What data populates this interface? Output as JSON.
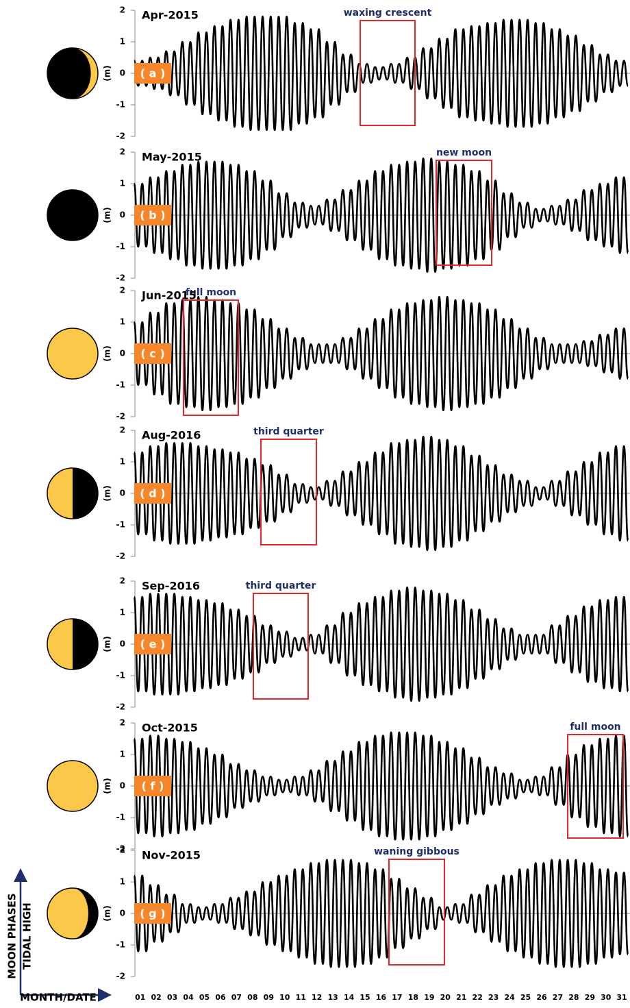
{
  "chart_data": [
    {
      "type": "line",
      "title": "Apr-2015",
      "annotation": "waxing crescent",
      "panel_label": "( a )",
      "ylabel": "(m)",
      "ylim": [
        -2,
        2
      ],
      "yticks": [
        -2,
        -1,
        0,
        1,
        2
      ],
      "color": "#000000",
      "values": [
        0.4,
        -0.4,
        0.4,
        -0.4,
        0.5,
        -0.5,
        0.5,
        -0.5,
        0.7,
        -0.7,
        0.7,
        -0.7,
        1,
        -1,
        1,
        -1,
        1.3,
        -1.3,
        1.3,
        -1.3,
        1.5,
        -1.5,
        1.5,
        -1.5,
        1.7,
        -1.7,
        1.7,
        -1.7,
        1.8,
        -1.8,
        1.8,
        -1.8,
        1.8,
        -1.8,
        1.8,
        -1.8,
        1.8,
        -1.8,
        1.8,
        -1.8,
        1.6,
        -1.6,
        1.6,
        -1.6,
        1.4,
        -1.4,
        1.4,
        -1.4,
        1,
        -1,
        1,
        -1,
        0.6,
        -0.6,
        0.6,
        -0.6,
        0.3,
        -0.3,
        0.3,
        -0.3,
        0.2,
        -0.2,
        0.2,
        -0.2,
        0.3,
        -0.3,
        0.3,
        -0.3,
        0.5,
        -0.5,
        0.5,
        -0.5,
        0.8,
        -0.8,
        0.8,
        -0.8,
        1.1,
        -1.1,
        1.1,
        -1.1,
        1.4,
        -1.4,
        1.4,
        -1.4,
        1.5,
        -1.5,
        1.5,
        -1.5,
        1.6,
        -1.6,
        1.6,
        -1.6,
        1.7,
        -1.7,
        1.7,
        -1.7,
        1.7,
        -1.7,
        1.7,
        -1.7,
        1.6,
        -1.6,
        1.6,
        -1.6,
        1.4,
        -1.4,
        1.4,
        -1.4,
        1.2,
        -1.2,
        1.2,
        -1.2,
        0.9,
        -0.9,
        0.9,
        -0.9,
        0.6,
        -0.6,
        0.6,
        -0.6,
        0.4,
        -0.4,
        0.4,
        -0.4
      ]
    },
    {
      "type": "line",
      "title": "May-2015",
      "annotation": "new  moon",
      "panel_label": "( b )",
      "ylabel": "(m)",
      "ylim": [
        -2,
        2
      ],
      "yticks": [
        -2,
        -1,
        0,
        1,
        2
      ],
      "color": "#000000",
      "values": [
        1,
        -1,
        1,
        -1,
        1.2,
        -1.2,
        1.2,
        -1.2,
        1.4,
        -1.4,
        1.4,
        -1.4,
        1.6,
        -1.6,
        1.6,
        -1.6,
        1.7,
        -1.7,
        1.7,
        -1.7,
        1.7,
        -1.7,
        1.7,
        -1.7,
        1.6,
        -1.6,
        1.6,
        -1.6,
        1.4,
        -1.4,
        1.4,
        -1.4,
        1.1,
        -1.1,
        1.1,
        -1.1,
        0.7,
        -0.7,
        0.7,
        -0.7,
        0.4,
        -0.4,
        0.4,
        -0.4,
        0.3,
        -0.3,
        0.3,
        -0.3,
        0.5,
        -0.5,
        0.5,
        -0.5,
        0.8,
        -0.8,
        0.8,
        -0.8,
        1.1,
        -1.1,
        1.1,
        -1.1,
        1.4,
        -1.4,
        1.4,
        -1.4,
        1.6,
        -1.6,
        1.6,
        -1.6,
        1.7,
        -1.7,
        1.7,
        -1.7,
        1.8,
        -1.8,
        1.8,
        -1.8,
        1.7,
        -1.7,
        1.7,
        -1.7,
        1.6,
        -1.6,
        1.6,
        -1.6,
        1.4,
        -1.4,
        1.4,
        -1.4,
        1.1,
        -1.1,
        1.1,
        -1.1,
        0.7,
        -0.7,
        0.7,
        -0.7,
        0.4,
        -0.4,
        0.4,
        -0.4,
        0.2,
        -0.2,
        0.2,
        -0.2,
        0.3,
        -0.3,
        0.3,
        -0.3,
        0.5,
        -0.5,
        0.5,
        -0.5,
        0.8,
        -0.8,
        0.8,
        -0.8,
        1,
        -1,
        1,
        -1,
        1.2,
        -1.2,
        1.2,
        -1.2
      ]
    },
    {
      "type": "line",
      "title": "Jun-2015",
      "annotation": "full moon",
      "panel_label": "( c )",
      "ylabel": "(m)",
      "ylim": [
        -2,
        2
      ],
      "yticks": [
        -2,
        -1,
        0,
        1,
        2
      ],
      "color": "#000000",
      "values": [
        1,
        -1,
        1,
        -1,
        1.3,
        -1.3,
        1.3,
        -1.3,
        1.6,
        -1.6,
        1.6,
        -1.6,
        1.7,
        -1.7,
        1.7,
        -1.7,
        1.8,
        -1.8,
        1.8,
        -1.8,
        1.7,
        -1.7,
        1.7,
        -1.7,
        1.6,
        -1.6,
        1.6,
        -1.6,
        1.4,
        -1.4,
        1.4,
        -1.4,
        1.1,
        -1.1,
        1.1,
        -1.1,
        0.8,
        -0.8,
        0.8,
        -0.8,
        0.5,
        -0.5,
        0.5,
        -0.5,
        0.3,
        -0.3,
        0.3,
        -0.3,
        0.3,
        -0.3,
        0.3,
        -0.3,
        0.5,
        -0.5,
        0.5,
        -0.5,
        0.8,
        -0.8,
        0.8,
        -0.8,
        1.1,
        -1.1,
        1.1,
        -1.1,
        1.4,
        -1.4,
        1.4,
        -1.4,
        1.6,
        -1.6,
        1.6,
        -1.6,
        1.7,
        -1.7,
        1.7,
        -1.7,
        1.8,
        -1.8,
        1.8,
        -1.8,
        1.7,
        -1.7,
        1.7,
        -1.7,
        1.6,
        -1.6,
        1.6,
        -1.6,
        1.4,
        -1.4,
        1.4,
        -1.4,
        1.1,
        -1.1,
        1.1,
        -1.1,
        0.8,
        -0.8,
        0.8,
        -0.8,
        0.5,
        -0.5,
        0.5,
        -0.5,
        0.3,
        -0.3,
        0.3,
        -0.3,
        0.3,
        -0.3,
        0.3,
        -0.3,
        0.4,
        -0.4,
        0.4,
        -0.4,
        0.6,
        -0.6,
        0.6,
        -0.6,
        0.8,
        -0.8,
        0.8,
        -0.8
      ]
    },
    {
      "type": "line",
      "title": "Aug-2016",
      "annotation": "third quarter",
      "panel_label": "( d )",
      "ylabel": "(m)",
      "ylim": [
        -2,
        2
      ],
      "yticks": [
        -2,
        -1,
        0,
        1,
        2
      ],
      "color": "#000000",
      "values": [
        1.3,
        -1.3,
        1.3,
        -1.3,
        1.5,
        -1.5,
        1.5,
        -1.5,
        1.6,
        -1.6,
        1.6,
        -1.6,
        1.6,
        -1.6,
        1.6,
        -1.6,
        1.5,
        -1.5,
        1.5,
        -1.5,
        1.4,
        -1.4,
        1.4,
        -1.4,
        1.3,
        -1.3,
        1.3,
        -1.3,
        1.1,
        -1.1,
        1.1,
        -1.1,
        0.9,
        -0.9,
        0.9,
        -0.9,
        0.6,
        -0.6,
        0.6,
        -0.6,
        0.3,
        -0.3,
        0.3,
        -0.3,
        0.2,
        -0.2,
        0.2,
        -0.2,
        0.4,
        -0.4,
        0.4,
        -0.4,
        0.7,
        -0.7,
        0.7,
        -0.7,
        1,
        -1,
        1,
        -1,
        1.3,
        -1.3,
        1.3,
        -1.3,
        1.6,
        -1.6,
        1.6,
        -1.6,
        1.7,
        -1.7,
        1.7,
        -1.7,
        1.8,
        -1.8,
        1.8,
        -1.8,
        1.7,
        -1.7,
        1.7,
        -1.7,
        1.5,
        -1.5,
        1.5,
        -1.5,
        1.2,
        -1.2,
        1.2,
        -1.2,
        0.9,
        -0.9,
        0.9,
        -0.9,
        0.6,
        -0.6,
        0.6,
        -0.6,
        0.4,
        -0.4,
        0.4,
        -0.4,
        0.2,
        -0.2,
        0.2,
        -0.2,
        0.4,
        -0.4,
        0.4,
        -0.4,
        0.7,
        -0.7,
        0.7,
        -0.7,
        1,
        -1,
        1,
        -1,
        1.3,
        -1.3,
        1.3,
        -1.3,
        1.5,
        -1.5,
        1.5,
        -1.5
      ]
    },
    {
      "type": "line",
      "title": "Sep-2016",
      "annotation": "third quarter",
      "panel_label": "( e )",
      "ylabel": "(m)",
      "ylim": [
        -2,
        2
      ],
      "yticks": [
        -2,
        -1,
        0,
        1,
        2
      ],
      "color": "#000000",
      "values": [
        1.5,
        -1.5,
        1.5,
        -1.5,
        1.6,
        -1.6,
        1.6,
        -1.6,
        1.6,
        -1.6,
        1.6,
        -1.6,
        1.5,
        -1.5,
        1.5,
        -1.5,
        1.4,
        -1.4,
        1.4,
        -1.4,
        1.3,
        -1.3,
        1.3,
        -1.3,
        1.1,
        -1.1,
        1.1,
        -1.1,
        0.9,
        -0.9,
        0.9,
        -0.9,
        0.6,
        -0.6,
        0.6,
        -0.6,
        0.4,
        -0.4,
        0.4,
        -0.4,
        0.2,
        -0.2,
        0.2,
        -0.2,
        0.3,
        -0.3,
        0.3,
        -0.3,
        0.6,
        -0.6,
        0.6,
        -0.6,
        1,
        -1,
        1,
        -1,
        1.3,
        -1.3,
        1.3,
        -1.3,
        1.5,
        -1.5,
        1.5,
        -1.5,
        1.7,
        -1.7,
        1.7,
        -1.7,
        1.8,
        -1.8,
        1.8,
        -1.8,
        1.7,
        -1.7,
        1.7,
        -1.7,
        1.6,
        -1.6,
        1.6,
        -1.6,
        1.4,
        -1.4,
        1.4,
        -1.4,
        1.1,
        -1.1,
        1.1,
        -1.1,
        0.8,
        -0.8,
        0.8,
        -0.8,
        0.5,
        -0.5,
        0.5,
        -0.5,
        0.3,
        -0.3,
        0.3,
        -0.3,
        0.3,
        -0.3,
        0.3,
        -0.3,
        0.6,
        -0.6,
        0.6,
        -0.6,
        0.9,
        -0.9,
        0.9,
        -0.9,
        1.2,
        -1.2,
        1.2,
        -1.2,
        1.4,
        -1.4,
        1.4,
        -1.4,
        1.5,
        -1.5,
        1.5,
        -1.5
      ]
    },
    {
      "type": "line",
      "title": "Oct-2015",
      "annotation": "full moon",
      "panel_label": "( f )",
      "ylabel": "(m)",
      "ylim": [
        -2,
        2
      ],
      "yticks": [
        -2,
        -1,
        0,
        1,
        2
      ],
      "color": "#000000",
      "values": [
        1.5,
        -1.5,
        1.5,
        -1.5,
        1.6,
        -1.6,
        1.6,
        -1.6,
        1.5,
        -1.5,
        1.5,
        -1.5,
        1.4,
        -1.4,
        1.4,
        -1.4,
        1.2,
        -1.2,
        1.2,
        -1.2,
        1,
        -1,
        1,
        -1,
        0.7,
        -0.7,
        0.7,
        -0.7,
        0.5,
        -0.5,
        0.5,
        -0.5,
        0.3,
        -0.3,
        0.3,
        -0.3,
        0.2,
        -0.2,
        0.2,
        -0.2,
        0.3,
        -0.3,
        0.3,
        -0.3,
        0.5,
        -0.5,
        0.5,
        -0.5,
        0.8,
        -0.8,
        0.8,
        -0.8,
        1.1,
        -1.1,
        1.1,
        -1.1,
        1.4,
        -1.4,
        1.4,
        -1.4,
        1.6,
        -1.6,
        1.6,
        -1.6,
        1.7,
        -1.7,
        1.7,
        -1.7,
        1.7,
        -1.7,
        1.7,
        -1.7,
        1.6,
        -1.6,
        1.6,
        -1.6,
        1.4,
        -1.4,
        1.4,
        -1.4,
        1.2,
        -1.2,
        1.2,
        -1.2,
        0.9,
        -0.9,
        0.9,
        -0.9,
        0.6,
        -0.6,
        0.6,
        -0.6,
        0.4,
        -0.4,
        0.4,
        -0.4,
        0.2,
        -0.2,
        0.2,
        -0.2,
        0.3,
        -0.3,
        0.3,
        -0.3,
        0.6,
        -0.6,
        0.6,
        -0.6,
        1,
        -1,
        1,
        -1,
        1.3,
        -1.3,
        1.3,
        -1.3,
        1.5,
        -1.5,
        1.5,
        -1.5,
        1.6,
        -1.6,
        1.6,
        -1.6
      ]
    },
    {
      "type": "line",
      "title": "Nov-2015",
      "annotation": "waning gibbous",
      "panel_label": "( g )",
      "ylabel": "(m)",
      "ylim": [
        -2,
        2
      ],
      "yticks": [
        -2,
        -1,
        0,
        1,
        2
      ],
      "color": "#000000",
      "values": [
        1.2,
        -1.2,
        1.2,
        -1.2,
        0.9,
        -0.9,
        0.9,
        -0.9,
        0.6,
        -0.6,
        0.6,
        -0.6,
        0.3,
        -0.3,
        0.3,
        -0.3,
        0.2,
        -0.2,
        0.2,
        -0.2,
        0.3,
        -0.3,
        0.3,
        -0.3,
        0.5,
        -0.5,
        0.5,
        -0.5,
        0.7,
        -0.7,
        0.7,
        -0.7,
        1,
        -1,
        1,
        -1,
        1.2,
        -1.2,
        1.2,
        -1.2,
        1.4,
        -1.4,
        1.4,
        -1.4,
        1.6,
        -1.6,
        1.6,
        -1.6,
        1.7,
        -1.7,
        1.7,
        -1.7,
        1.7,
        -1.7,
        1.7,
        -1.7,
        1.6,
        -1.6,
        1.6,
        -1.6,
        1.4,
        -1.4,
        1.4,
        -1.4,
        1.1,
        -1.1,
        1.1,
        -1.1,
        0.8,
        -0.8,
        0.8,
        -0.8,
        0.5,
        -0.5,
        0.5,
        -0.5,
        0.2,
        -0.2,
        0.2,
        -0.2,
        0.3,
        -0.3,
        0.3,
        -0.3,
        0.6,
        -0.6,
        0.6,
        -0.6,
        0.9,
        -0.9,
        0.9,
        -0.9,
        1.2,
        -1.2,
        1.2,
        -1.2,
        1.4,
        -1.4,
        1.4,
        -1.4,
        1.6,
        -1.6,
        1.6,
        -1.6,
        1.7,
        -1.7,
        1.7,
        -1.7,
        1.7,
        -1.7,
        1.7,
        -1.7,
        1.6,
        -1.6,
        1.6,
        -1.6,
        1.4,
        -1.4,
        1.4,
        -1.4,
        1.3,
        -1.3,
        1.3,
        -1.3
      ]
    }
  ],
  "x_axis": {
    "label": "MONTH/DATE",
    "categories": [
      "01",
      "02",
      "03",
      "04",
      "05",
      "06",
      "07",
      "08",
      "09",
      "10",
      "11",
      "12",
      "13",
      "14",
      "15",
      "16",
      "17",
      "18",
      "19",
      "20",
      "21",
      "22",
      "23",
      "24",
      "25",
      "26",
      "27",
      "28",
      "29",
      "30",
      "31"
    ]
  },
  "legend": {
    "vertical_label": "TIDAL HIGH",
    "vertical_label_2": "MOON PHASES"
  }
}
